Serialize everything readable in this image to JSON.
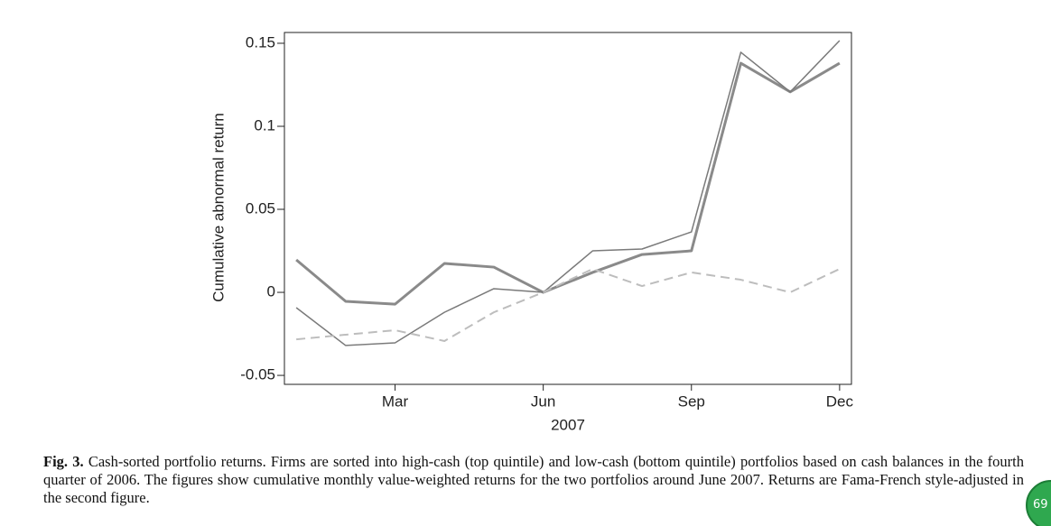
{
  "chart_data": {
    "type": "line",
    "y_label": "Cumulative abnormal return",
    "x_label": "2007",
    "categories": [
      null,
      null,
      "Mar",
      null,
      null,
      "Jun",
      null,
      null,
      "Sep",
      null,
      null,
      "Dec"
    ],
    "ylim": [
      -0.0554,
      0.1565
    ],
    "yticks": [
      -0.05,
      0,
      0.05,
      0.1,
      0.15
    ],
    "series": [
      {
        "color": "#8a8a8a",
        "width": 3,
        "dashed": false,
        "values": [
          0.0196,
          -0.0054,
          -0.0071,
          0.0174,
          0.0152,
          0,
          0.012,
          0.0228,
          0.025,
          0.138,
          0.1207,
          0.138
        ]
      },
      {
        "color": "#7a7a7a",
        "width": 1.5,
        "dashed": false,
        "values": [
          -0.0092,
          -0.032,
          -0.0304,
          -0.012,
          0.0022,
          0,
          0.025,
          0.0261,
          0.0364,
          0.1446,
          0.1207,
          0.1516
        ]
      },
      {
        "color": "#bdbdbd",
        "width": 2,
        "dashed": true,
        "values": [
          -0.0283,
          -0.0255,
          -0.0228,
          -0.0293,
          -0.012,
          0,
          0.0141,
          0.0038,
          0.012,
          0.0076,
          0,
          0.0141
        ]
      }
    ]
  },
  "caption": {
    "label": "Fig. 3.",
    "text": "Cash-sorted portfolio returns. Firms are sorted into high-cash (top quintile) and low-cash (bottom quintile) portfolios based on cash balances in the fourth quarter of 2006. The figures show cumulative monthly value-weighted returns for the two portfolios around June 2007. Returns are Fama-French style-adjusted in the second figure."
  },
  "badge": "69"
}
